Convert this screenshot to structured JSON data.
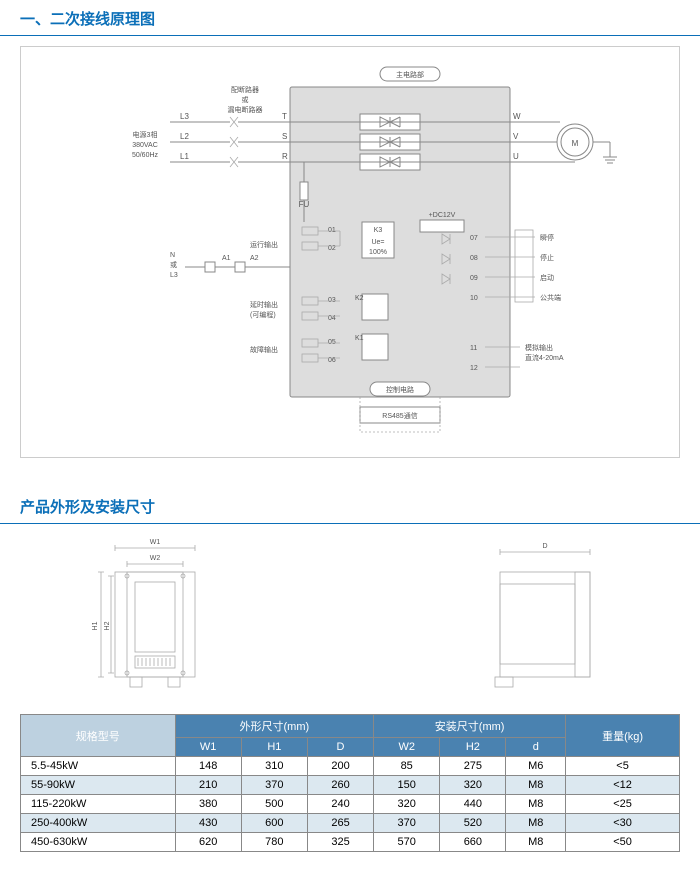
{
  "section1": {
    "title": "一、二次接线原理图"
  },
  "section2": {
    "title": "产品外形及安装尺寸"
  },
  "diagram": {
    "main_circuit_label": "主电路部",
    "control_circuit_label": "控制电路",
    "breaker_label1": "配断路器",
    "breaker_label2": "或",
    "breaker_label3": "漏电断路器",
    "power_label1": "电源3相",
    "power_label2": "380VAC",
    "power_label3": "50/60Hz",
    "L1": "L1",
    "L2": "L2",
    "L3": "L3",
    "R": "R",
    "S": "S",
    "T": "T",
    "U": "U",
    "V": "V",
    "W": "W",
    "M": "M",
    "FU": "FU",
    "N_or": "N",
    "or": "或",
    "L3b": "L3",
    "A1": "A1",
    "A2": "A2",
    "run_output": "运行输出",
    "delay_output1": "延时输出",
    "delay_output2": "(可编程)",
    "fault_output": "故障输出",
    "K1": "K1",
    "K2": "K2",
    "K3": "K3",
    "Ue": "Ue=",
    "Ue2": "100%",
    "DC12V": "+DC12V",
    "jog": "瞬停",
    "stop": "停止",
    "start": "启动",
    "common": "公共端",
    "analog1": "模拟输出",
    "analog2": "直流4-20mA",
    "rs485": "RS485通信",
    "p01": "01",
    "p02": "02",
    "p03": "03",
    "p04": "04",
    "p05": "05",
    "p06": "06",
    "p07": "07",
    "p08": "08",
    "p09": "09",
    "p10": "10",
    "p11": "11",
    "p12": "12"
  },
  "dims": {
    "W1": "W1",
    "W2": "W2",
    "H1": "H1",
    "H2": "H2",
    "D": "D"
  },
  "table": {
    "header": {
      "model": "规格型号",
      "outer": "外形尺寸(mm)",
      "install": "安装尺寸(mm)",
      "weight": "重量(kg)",
      "W1": "W1",
      "H1": "H1",
      "D": "D",
      "W2": "W2",
      "H2": "H2",
      "d": "d"
    },
    "rows": [
      {
        "m": "5.5-45kW",
        "w1": "148",
        "h1": "310",
        "d": "200",
        "w2": "85",
        "h2": "275",
        "dd": "M6",
        "wt": "<5"
      },
      {
        "m": "55-90kW",
        "w1": "210",
        "h1": "370",
        "d": "260",
        "w2": "150",
        "h2": "320",
        "dd": "M8",
        "wt": "<12"
      },
      {
        "m": "115-220kW",
        "w1": "380",
        "h1": "500",
        "d": "240",
        "w2": "320",
        "h2": "440",
        "dd": "M8",
        "wt": "<25"
      },
      {
        "m": "250-400kW",
        "w1": "430",
        "h1": "600",
        "d": "265",
        "w2": "370",
        "h2": "520",
        "dd": "M8",
        "wt": "<30"
      },
      {
        "m": "450-630kW",
        "w1": "620",
        "h1": "780",
        "d": "325",
        "w2": "570",
        "h2": "660",
        "dd": "M8",
        "wt": "<50"
      }
    ]
  },
  "style": {
    "title_color": "#0b6fb8",
    "th_bg": "#4a82b0",
    "alt_bg": "#dce8f0",
    "model_bg": "#bdd1e0",
    "border": "#888"
  }
}
